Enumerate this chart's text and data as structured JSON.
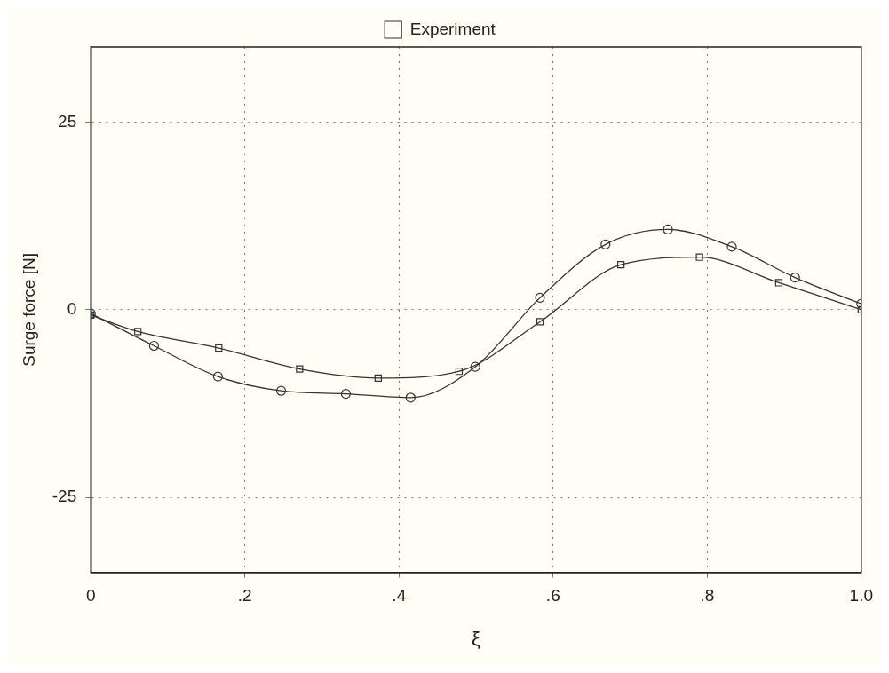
{
  "chart_data": {
    "type": "line",
    "xlabel": "ξ",
    "ylabel": "Surge force [N]",
    "xlim": [
      0,
      1
    ],
    "xticks": [
      0,
      {
        "value": 0.2,
        "label": ".2"
      },
      {
        "value": 0.4,
        "label": ".4"
      },
      {
        "value": 0.6,
        "label": ".6"
      },
      {
        "value": 0.8,
        "label": ".8"
      },
      {
        "value": 1,
        "label": "1.0"
      }
    ],
    "ylim": [
      -35,
      35
    ],
    "yticks": [
      -25,
      0,
      25
    ],
    "grid": true,
    "legend": "top",
    "line_style": "solid",
    "series": [
      {
        "color": "#333333",
        "marker": "circle",
        "x": [
          0.0,
          0.082,
          0.165,
          0.247,
          0.331,
          0.415,
          0.499,
          0.583,
          0.668,
          0.749,
          0.832,
          0.914,
          1.0
        ],
        "values": [
          -0.5,
          -4.8,
          -8.9,
          -10.8,
          -11.2,
          -11.7,
          -7.6,
          1.6,
          8.7,
          10.7,
          8.4,
          4.3,
          0.8
        ]
      },
      {
        "name": "Experiment",
        "color": "#333333",
        "marker": "square",
        "x": [
          0.0,
          0.061,
          0.166,
          0.271,
          0.373,
          0.478,
          0.583,
          0.688,
          0.79,
          0.893,
          1.0
        ],
        "values": [
          -0.7,
          -2.9,
          -5.1,
          -7.9,
          -9.1,
          -8.2,
          -1.6,
          6.0,
          7.0,
          3.6,
          0.0
        ]
      }
    ]
  }
}
